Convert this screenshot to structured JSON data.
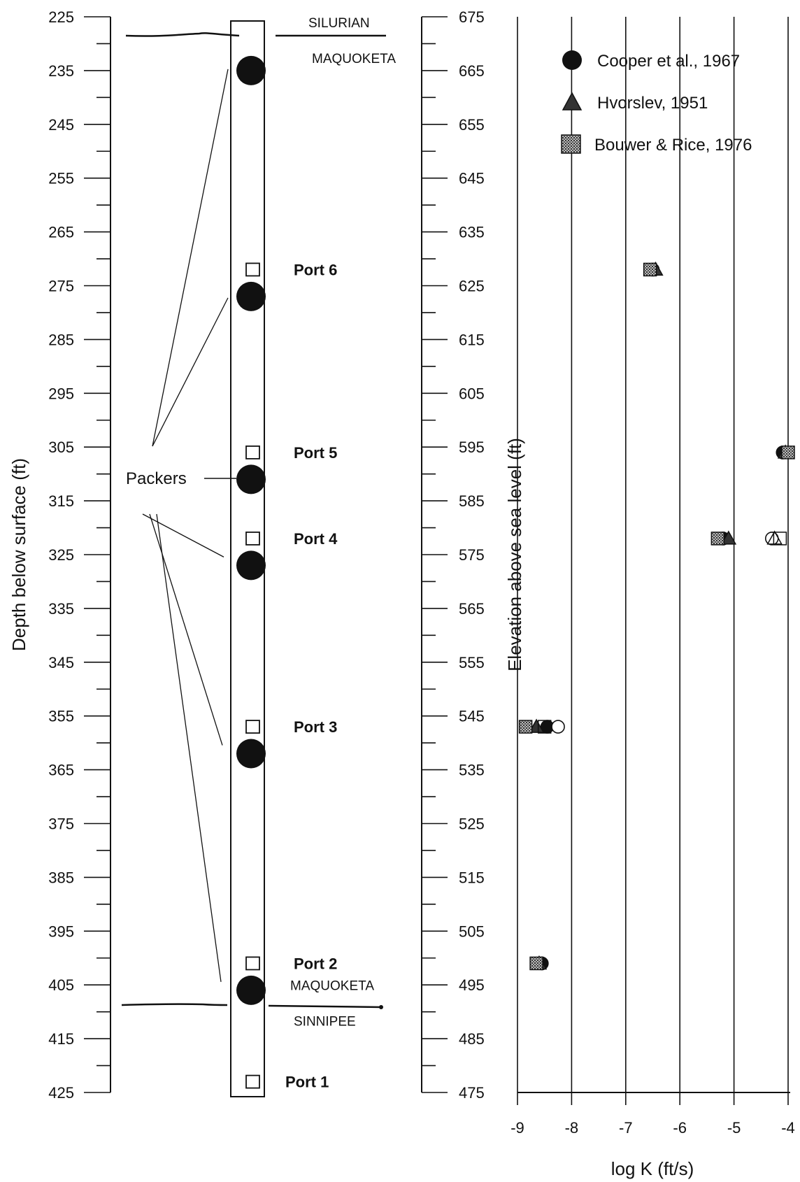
{
  "chart_data": {
    "type": "scatter",
    "left_axis": {
      "label": "Depth below surface (ft)",
      "range": [
        225,
        425
      ],
      "ticks": [
        225,
        235,
        245,
        255,
        265,
        275,
        285,
        295,
        305,
        315,
        325,
        335,
        345,
        355,
        365,
        375,
        385,
        395,
        405,
        415,
        425
      ],
      "minor_step": 5
    },
    "right_axis": {
      "label": "Elevation above sea level (ft)",
      "range": [
        675,
        475
      ],
      "ticks": [
        675,
        665,
        655,
        645,
        635,
        625,
        615,
        605,
        595,
        585,
        575,
        565,
        555,
        545,
        535,
        525,
        515,
        505,
        495,
        485,
        475
      ],
      "minor_step": 5
    },
    "x_axis": {
      "label": "log K (ft/s)",
      "range": [
        -9,
        -4
      ],
      "ticks": [
        -9,
        -8,
        -7,
        -6,
        -5,
        -4
      ],
      "grid": true
    },
    "legend": {
      "placement": "top-right",
      "entries": [
        {
          "label": "Cooper et al., 1967",
          "marker": "circle"
        },
        {
          "label": "Hvorslev, 1951",
          "marker": "triangle"
        },
        {
          "label": "Bouwer & Rice, 1976",
          "marker": "square"
        }
      ]
    },
    "formations": [
      {
        "upper": "SILURIAN",
        "lower": "MAQUOKETA",
        "depth": 229
      },
      {
        "upper": "MAQUOKETA",
        "lower": "SINNIPEE",
        "depth": 408
      }
    ],
    "packers_label": "Packers",
    "packers": [
      235,
      277,
      311,
      327,
      362,
      406
    ],
    "ports": [
      {
        "name": "Port 6",
        "depth": 272
      },
      {
        "name": "Port 5",
        "depth": 306
      },
      {
        "name": "Port 4",
        "depth": 322
      },
      {
        "name": "Port 3",
        "depth": 357
      },
      {
        "name": "Port 2",
        "depth": 401
      },
      {
        "name": "Port 1",
        "depth": 423
      }
    ],
    "series": [
      {
        "name": "Cooper et al., 1967",
        "marker": "circle",
        "points": [
          {
            "x": -6.5,
            "y": 272,
            "fill": "solid"
          },
          {
            "x": -4.1,
            "y": 306,
            "fill": "solid"
          },
          {
            "x": -5.2,
            "y": 322,
            "fill": "solid"
          },
          {
            "x": -4.3,
            "y": 322,
            "fill": "open"
          },
          {
            "x": -8.45,
            "y": 357,
            "fill": "solid"
          },
          {
            "x": -8.25,
            "y": 357,
            "fill": "open"
          },
          {
            "x": -8.55,
            "y": 401,
            "fill": "solid"
          }
        ]
      },
      {
        "name": "Hvorslev, 1951",
        "marker": "triangle",
        "points": [
          {
            "x": -6.45,
            "y": 272,
            "fill": "solid"
          },
          {
            "x": -4.05,
            "y": 306,
            "fill": "solid"
          },
          {
            "x": -5.1,
            "y": 322,
            "fill": "solid"
          },
          {
            "x": -4.25,
            "y": 322,
            "fill": "open"
          },
          {
            "x": -8.65,
            "y": 357,
            "fill": "solid"
          },
          {
            "x": -8.6,
            "y": 401,
            "fill": "solid"
          }
        ]
      },
      {
        "name": "Bouwer & Rice, 1976",
        "marker": "square",
        "points": [
          {
            "x": -6.55,
            "y": 272,
            "fill": "solid"
          },
          {
            "x": -4.0,
            "y": 306,
            "fill": "solid"
          },
          {
            "x": -5.3,
            "y": 322,
            "fill": "solid"
          },
          {
            "x": -4.15,
            "y": 322,
            "fill": "open"
          },
          {
            "x": -8.85,
            "y": 357,
            "fill": "solid"
          },
          {
            "x": -8.5,
            "y": 357,
            "fill": "open"
          },
          {
            "x": -8.65,
            "y": 401,
            "fill": "solid"
          }
        ]
      }
    ]
  }
}
